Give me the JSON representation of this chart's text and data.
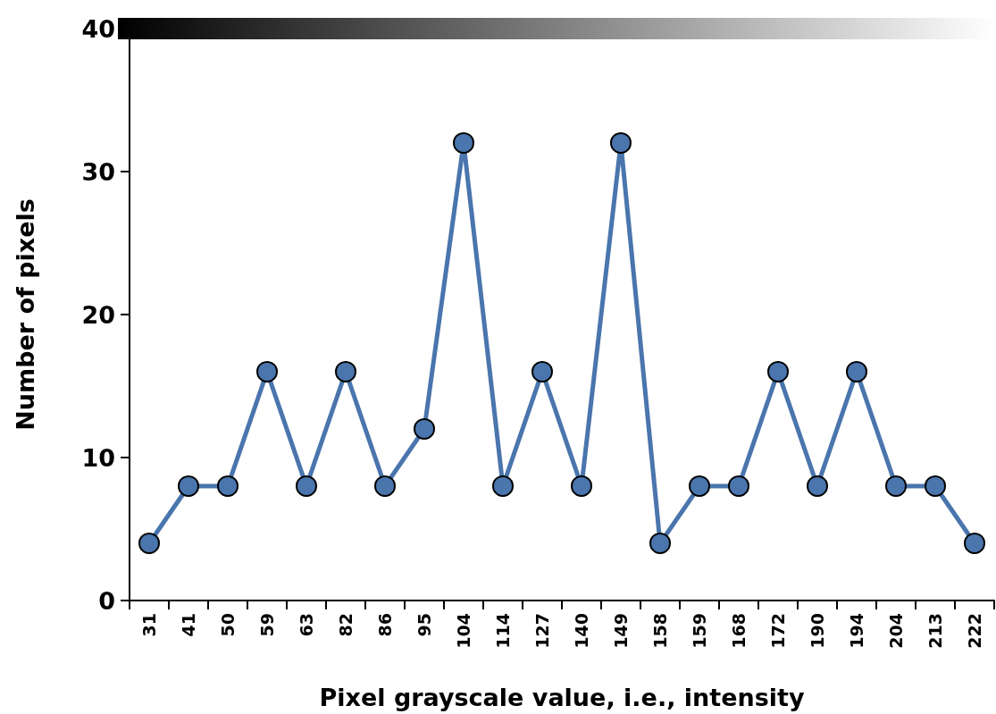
{
  "chart_data": {
    "type": "line",
    "xlabel": "Pixel grayscale value, i.e., intensity",
    "ylabel": "Number of pixels",
    "categories": [
      "31",
      "41",
      "50",
      "59",
      "63",
      "82",
      "86",
      "95",
      "104",
      "114",
      "127",
      "140",
      "149",
      "158",
      "159",
      "168",
      "172",
      "190",
      "194",
      "204",
      "213",
      "222"
    ],
    "series": [
      {
        "color": "#4a75ad",
        "values": [
          4,
          8,
          8,
          16,
          8,
          16,
          8,
          12,
          32,
          8,
          16,
          8,
          32,
          4,
          8,
          8,
          16,
          8,
          16,
          8,
          8,
          4
        ]
      }
    ],
    "ylim": [
      0,
      40
    ],
    "yticks": [
      0,
      10,
      20,
      30,
      40
    ],
    "grid": false,
    "marker": "circle",
    "line_style": "solid"
  }
}
